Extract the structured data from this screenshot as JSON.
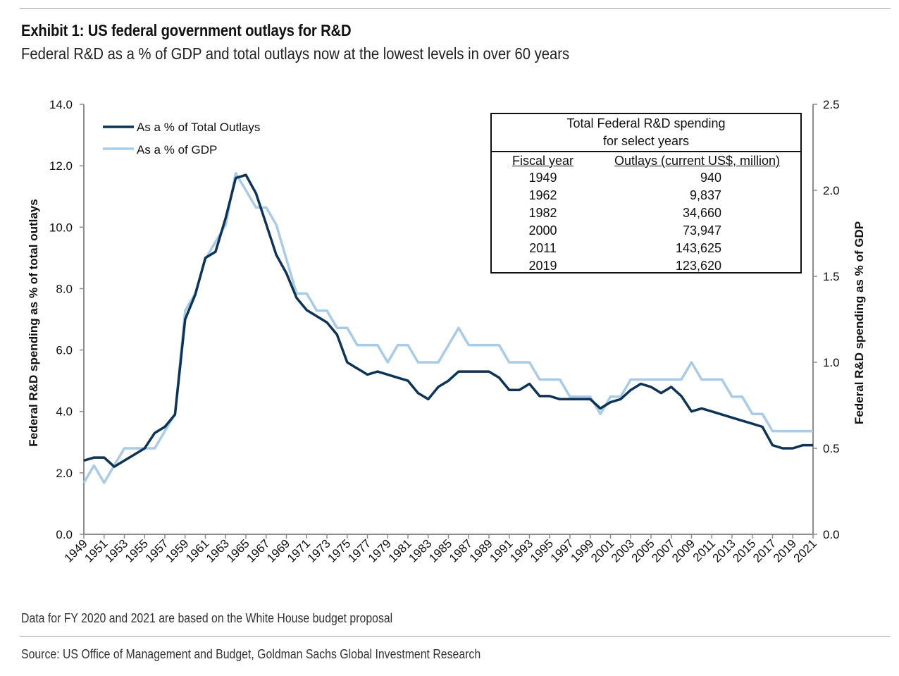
{
  "header": {
    "title": "Exhibit 1: US federal government outlays for R&D",
    "subtitle": "Federal R&D as a % of GDP and total outlays now at the lowest levels in over 60 years"
  },
  "footer": {
    "note": "Data for FY 2020 and 2021 are based on the White House budget proposal",
    "source": "Source: US Office of Management and Budget, Goldman Sachs Global Investment Research"
  },
  "colors": {
    "outlays": "#0d3356",
    "gdp": "#a9cbe6"
  },
  "inset_table": {
    "title_line1": "Total Federal R&D spending",
    "title_line2": "for select years",
    "col1": "Fiscal year",
    "col2": "Outlays (current US$, million)",
    "rows": [
      {
        "year": "1949",
        "value": "940"
      },
      {
        "year": "1962",
        "value": "9,837"
      },
      {
        "year": "1982",
        "value": "34,660"
      },
      {
        "year": "2000",
        "value": "73,947"
      },
      {
        "year": "2011",
        "value": "143,625"
      },
      {
        "year": "2019",
        "value": "123,620"
      }
    ]
  },
  "chart_data": {
    "type": "line",
    "title": "Exhibit 1: US federal government outlays for R&D",
    "subtitle": "Federal R&D as a % of GDP and total outlays now at the lowest levels in over 60 years",
    "xlabel": "",
    "ylabel": "Federal R&D spending as % of total outlays",
    "y2label": "Federal R&D spending as % of GDP",
    "ylim": [
      0,
      14
    ],
    "y2lim": [
      0,
      2.5
    ],
    "yticks": [
      "0.0",
      "2.0",
      "4.0",
      "6.0",
      "8.0",
      "10.0",
      "12.0",
      "14.0"
    ],
    "y2ticks": [
      "0.0",
      "0.5",
      "1.0",
      "1.5",
      "2.0",
      "2.5"
    ],
    "x": [
      1949,
      1950,
      1951,
      1952,
      1953,
      1954,
      1955,
      1956,
      1957,
      1958,
      1959,
      1960,
      1961,
      1962,
      1963,
      1964,
      1965,
      1966,
      1967,
      1968,
      1969,
      1970,
      1971,
      1972,
      1973,
      1974,
      1975,
      1976,
      1977,
      1978,
      1979,
      1980,
      1981,
      1982,
      1983,
      1984,
      1985,
      1986,
      1987,
      1988,
      1989,
      1990,
      1991,
      1992,
      1993,
      1994,
      1995,
      1996,
      1997,
      1998,
      1999,
      2000,
      2001,
      2002,
      2003,
      2004,
      2005,
      2006,
      2007,
      2008,
      2009,
      2010,
      2011,
      2012,
      2013,
      2014,
      2015,
      2016,
      2017,
      2018,
      2019,
      2020,
      2021
    ],
    "xtick_labels": [
      "1949",
      "1951",
      "1953",
      "1955",
      "1957",
      "1959",
      "1961",
      "1963",
      "1965",
      "1967",
      "1969",
      "1971",
      "1973",
      "1975",
      "1977",
      "1979",
      "1981",
      "1983",
      "1985",
      "1987",
      "1989",
      "1991",
      "1993",
      "1995",
      "1997",
      "1999",
      "2001",
      "2003",
      "2005",
      "2007",
      "2009",
      "2011",
      "2013",
      "2015",
      "2017",
      "2019",
      "2021"
    ],
    "legend": "top-left",
    "grid": false,
    "series": [
      {
        "name": "As a % of Total Outlays",
        "axis": "left",
        "values": [
          2.4,
          2.5,
          2.5,
          2.2,
          2.4,
          2.6,
          2.8,
          3.3,
          3.5,
          3.9,
          7.0,
          7.8,
          9.0,
          9.2,
          10.3,
          11.6,
          11.7,
          11.1,
          10.1,
          9.1,
          8.5,
          7.7,
          7.3,
          7.1,
          6.9,
          6.5,
          5.6,
          5.4,
          5.2,
          5.3,
          5.2,
          5.1,
          5.0,
          4.6,
          4.4,
          4.8,
          5.0,
          5.3,
          5.3,
          5.3,
          5.3,
          5.1,
          4.7,
          4.7,
          4.9,
          4.5,
          4.5,
          4.4,
          4.4,
          4.4,
          4.4,
          4.1,
          4.3,
          4.4,
          4.7,
          4.9,
          4.8,
          4.6,
          4.8,
          4.5,
          4.0,
          4.1,
          4.0,
          3.9,
          3.8,
          3.7,
          3.6,
          3.5,
          2.9,
          2.8,
          2.8,
          2.9,
          2.9
        ]
      },
      {
        "name": "As a % of GDP",
        "axis": "right",
        "values": [
          0.3,
          0.4,
          0.3,
          0.4,
          0.5,
          0.5,
          0.5,
          0.5,
          0.6,
          0.7,
          1.3,
          1.4,
          1.6,
          1.7,
          1.8,
          2.1,
          2.0,
          1.9,
          1.9,
          1.8,
          1.6,
          1.4,
          1.4,
          1.3,
          1.3,
          1.2,
          1.2,
          1.1,
          1.1,
          1.1,
          1.0,
          1.1,
          1.1,
          1.0,
          1.0,
          1.0,
          1.1,
          1.2,
          1.1,
          1.1,
          1.1,
          1.1,
          1.0,
          1.0,
          1.0,
          0.9,
          0.9,
          0.9,
          0.8,
          0.8,
          0.8,
          0.7,
          0.8,
          0.8,
          0.9,
          0.9,
          0.9,
          0.9,
          0.9,
          0.9,
          1.0,
          0.9,
          0.9,
          0.9,
          0.8,
          0.8,
          0.7,
          0.7,
          0.6,
          0.6,
          0.6,
          0.6,
          0.6
        ]
      }
    ]
  }
}
